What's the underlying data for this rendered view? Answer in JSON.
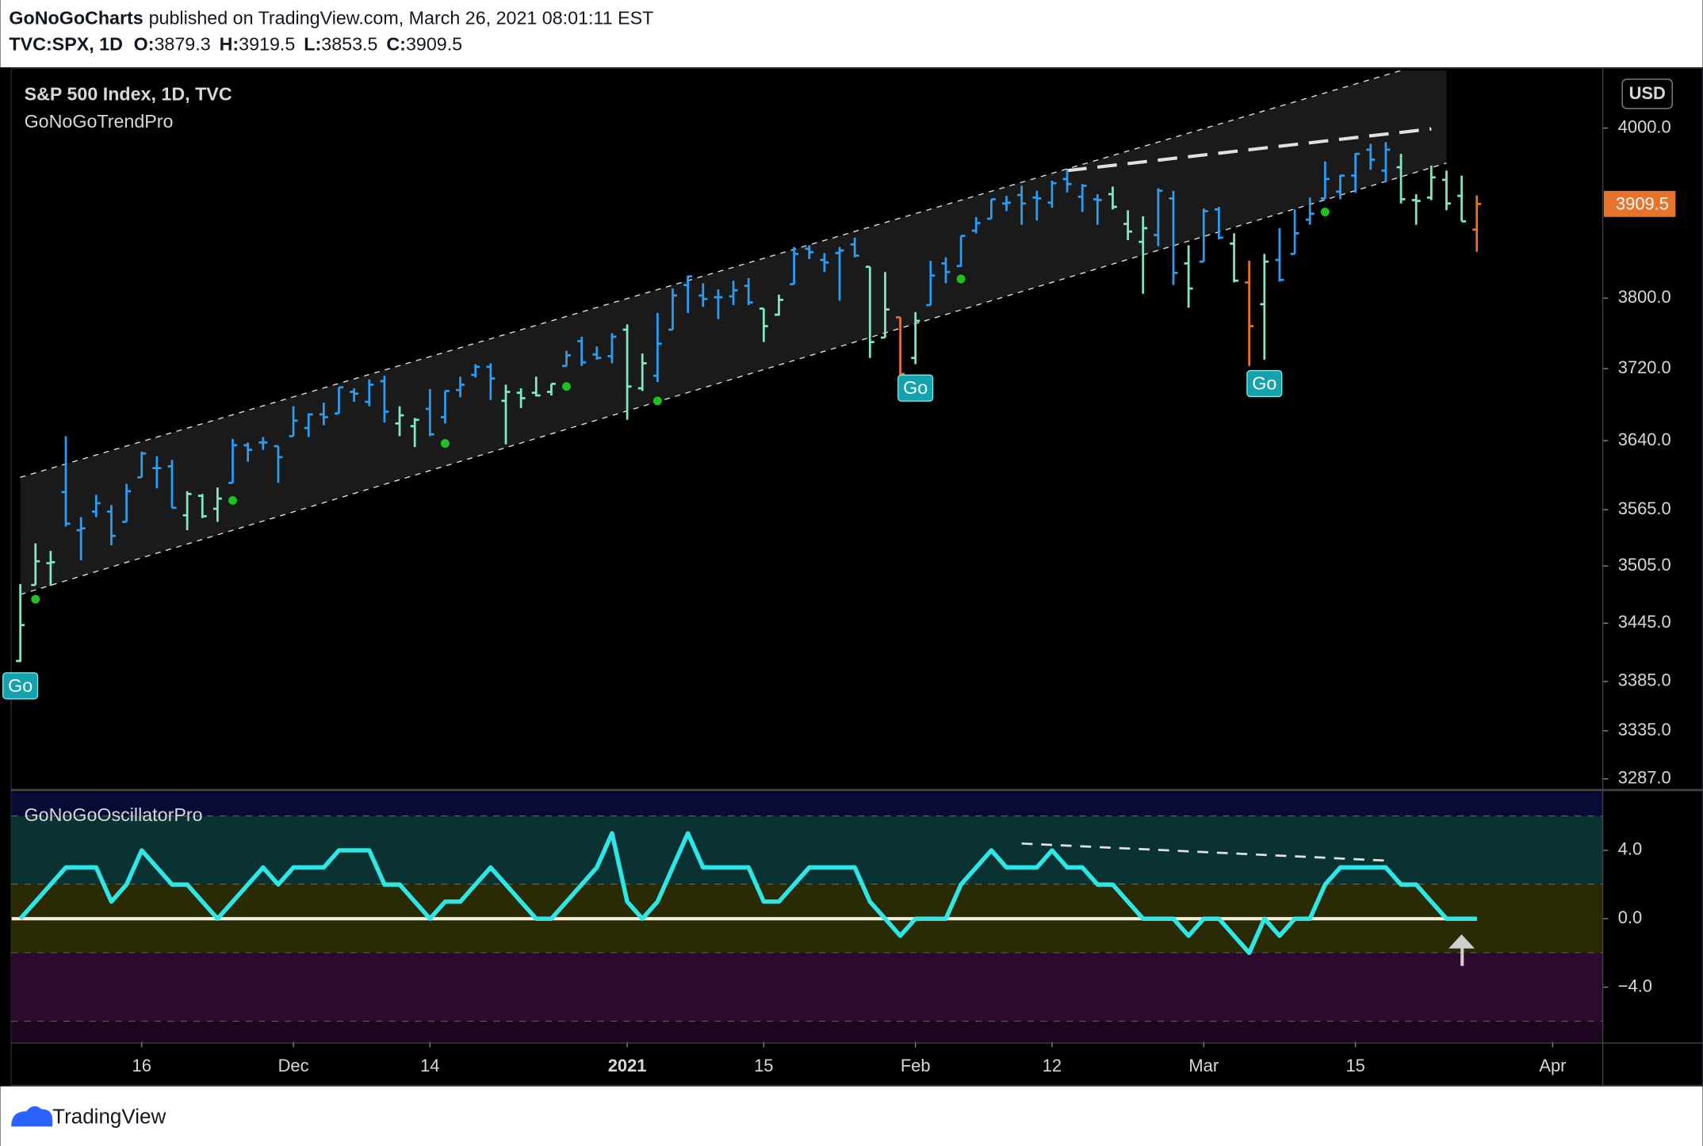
{
  "header": {
    "publisher": "GoNoGoCharts",
    "published": "published on TradingView.com, March 26, 2021 08:01:11 EST",
    "symbol": "TVC:SPX, 1D",
    "ohlc_labels": [
      "O:",
      "H:",
      "L:",
      "C:"
    ]
  },
  "currency": "USD",
  "footer": "TradingView",
  "chart_data": [
    {
      "type": "ohlc",
      "title": "S&P 500 Index, 1D, TVC",
      "subtitle": "GoNoGoTrendPro",
      "log_scale": true,
      "xlim": [
        -0.6,
        104.3
      ],
      "ylim": [
        3277,
        4070
      ],
      "yticks": [
        {
          "value": 4000,
          "label": "4000.0"
        },
        {
          "value": 3800,
          "label": "3800.0"
        },
        {
          "value": 3720,
          "label": "3720.0"
        },
        {
          "value": 3640,
          "label": "3640.0"
        },
        {
          "value": 3565,
          "label": "3565.0"
        },
        {
          "value": 3505,
          "label": "3505.0"
        },
        {
          "value": 3445,
          "label": "3445.0"
        },
        {
          "value": 3385,
          "label": "3385.0"
        },
        {
          "value": 3335,
          "label": "3335.0"
        },
        {
          "value": 3287,
          "label": "3287.0"
        }
      ],
      "open": [
        3406,
        3485,
        3508,
        3584,
        3543,
        3563,
        3563,
        3552,
        3600,
        3610,
        3612,
        3559,
        3580,
        3566,
        3594,
        3635,
        3638,
        3634,
        3645,
        3654,
        3669,
        3670,
        3694,
        3683,
        3706,
        3659,
        3656,
        3675,
        3666,
        3696,
        3713,
        3722,
        3684,
        3693,
        3693,
        3694,
        3723,
        3751,
        3736,
        3734,
        3764,
        3698,
        3712,
        3764,
        3815,
        3803,
        3801,
        3802,
        3814,
        3788,
        3781,
        3816,
        3857,
        3844,
        3852,
        3862,
        3836,
        3755,
        3778,
        3732,
        3792,
        3840,
        3837,
        3878,
        3892,
        3910,
        3920,
        3917,
        3911,
        3939,
        3918,
        3915,
        3921,
        3886,
        3865,
        3873,
        3916,
        3840,
        3842,
        3903,
        3863,
        3818,
        3793,
        3844,
        3851,
        3891,
        3916,
        3924,
        3943,
        3974,
        3949,
        3953,
        3914,
        3917,
        3938,
        3919,
        3879.3
      ],
      "high": [
        3486,
        3529,
        3521,
        3645,
        3557,
        3581,
        3570,
        3593,
        3628,
        3623,
        3619,
        3585,
        3582,
        3589,
        3642,
        3638,
        3644,
        3634,
        3678,
        3670,
        3682,
        3699,
        3698,
        3708,
        3712,
        3678,
        3665,
        3697,
        3695,
        3711,
        3725,
        3726,
        3702,
        3698,
        3711,
        3703,
        3740,
        3756,
        3745,
        3760,
        3770,
        3737,
        3783,
        3811,
        3826,
        3817,
        3810,
        3820,
        3823,
        3788,
        3804,
        3859,
        3861,
        3852,
        3859,
        3870,
        3836,
        3830,
        3778,
        3784,
        3843,
        3847,
        3872,
        3894,
        3915,
        3919,
        3931,
        3925,
        3937,
        3950,
        3933,
        3921,
        3930,
        3902,
        3895,
        3928,
        3925,
        3861,
        3904,
        3906,
        3875,
        3843,
        3851,
        3881,
        3903,
        3917,
        3960,
        3944,
        3970,
        3981,
        3983,
        3969,
        3921,
        3955,
        3949,
        3943,
        3919.5
      ],
      "low": [
        3405,
        3485,
        3484,
        3547,
        3511,
        3557,
        3527,
        3552,
        3600,
        3588,
        3567,
        3543,
        3556,
        3552,
        3594,
        3617,
        3630,
        3594,
        3645,
        3644,
        3657,
        3670,
        3683,
        3678,
        3660,
        3645,
        3633,
        3645,
        3659,
        3688,
        3710,
        3685,
        3636,
        3676,
        3689,
        3690,
        3723,
        3723,
        3730,
        3726,
        3663,
        3695,
        3705,
        3764,
        3783,
        3790,
        3776,
        3792,
        3792,
        3750,
        3780,
        3816,
        3845,
        3830,
        3797,
        3847,
        3732,
        3755,
        3694,
        3725,
        3792,
        3817,
        3836,
        3875,
        3892,
        3901,
        3885,
        3890,
        3905,
        3923,
        3900,
        3885,
        3903,
        3867,
        3805,
        3860,
        3815,
        3789,
        3842,
        3868,
        3818,
        3723,
        3730,
        3819,
        3851,
        3885,
        3916,
        3915,
        3923,
        3950,
        3935,
        3910,
        3885,
        3914,
        3902,
        3889,
        3853.5
      ],
      "close": [
        3443,
        3510,
        3509,
        3550,
        3545,
        3572,
        3537,
        3585,
        3626,
        3610,
        3567,
        3582,
        3558,
        3577,
        3635,
        3630,
        3638,
        3622,
        3662,
        3669,
        3666,
        3699,
        3692,
        3702,
        3672,
        3668,
        3663,
        3647,
        3695,
        3702,
        3722,
        3709,
        3694,
        3687,
        3690,
        3703,
        3735,
        3727,
        3732,
        3756,
        3700,
        3726,
        3748,
        3803,
        3825,
        3799,
        3801,
        3809,
        3795,
        3768,
        3798,
        3851,
        3853,
        3841,
        3855,
        3849,
        3750,
        3787,
        3714,
        3774,
        3826,
        3830,
        3872,
        3887,
        3915,
        3911,
        3910,
        3916,
        3934,
        3933,
        3931,
        3914,
        3906,
        3877,
        3881,
        3925,
        3829,
        3811,
        3901,
        3870,
        3820,
        3768,
        3842,
        3821,
        3875,
        3898,
        3939,
        3943,
        3969,
        3962,
        3974,
        3915,
        3913,
        3941,
        3910,
        3889,
        3909.5
      ],
      "colors": [
        "#80e8c8",
        "#80e8c8",
        "#80e8c8",
        "#2a9df4",
        "#2a9df4",
        "#2a9df4",
        "#2a9df4",
        "#2a9df4",
        "#2a9df4",
        "#2a9df4",
        "#2a9df4",
        "#80e8c8",
        "#80e8c8",
        "#80e8c8",
        "#2a9df4",
        "#2a9df4",
        "#2a9df4",
        "#2a9df4",
        "#2a9df4",
        "#2a9df4",
        "#2a9df4",
        "#2a9df4",
        "#2a9df4",
        "#2a9df4",
        "#2a9df4",
        "#80e8c8",
        "#80e8c8",
        "#2a9df4",
        "#2a9df4",
        "#2a9df4",
        "#2a9df4",
        "#2a9df4",
        "#80e8c8",
        "#80e8c8",
        "#80e8c8",
        "#80e8c8",
        "#2a9df4",
        "#2a9df4",
        "#2a9df4",
        "#2a9df4",
        "#80e8c8",
        "#80e8c8",
        "#2a9df4",
        "#2a9df4",
        "#2a9df4",
        "#2a9df4",
        "#2a9df4",
        "#2a9df4",
        "#2a9df4",
        "#80e8c8",
        "#80e8c8",
        "#2a9df4",
        "#2a9df4",
        "#2a9df4",
        "#2a9df4",
        "#2a9df4",
        "#80e8c8",
        "#80e8c8",
        "#e8742b",
        "#80e8c8",
        "#2a9df4",
        "#2a9df4",
        "#2a9df4",
        "#2a9df4",
        "#2a9df4",
        "#2a9df4",
        "#2a9df4",
        "#2a9df4",
        "#2a9df4",
        "#2a9df4",
        "#2a9df4",
        "#2a9df4",
        "#80e8c8",
        "#80e8c8",
        "#80e8c8",
        "#2a9df4",
        "#2a9df4",
        "#80e8c8",
        "#2a9df4",
        "#2a9df4",
        "#80e8c8",
        "#e8742b",
        "#80e8c8",
        "#2a9df4",
        "#2a9df4",
        "#2a9df4",
        "#2a9df4",
        "#2a9df4",
        "#2a9df4",
        "#2a9df4",
        "#2a9df4",
        "#80e8c8",
        "#80e8c8",
        "#80e8c8",
        "#80e8c8",
        "#80e8c8",
        "#e8742b"
      ],
      "last_price_color": "#e8742b",
      "channel_fill": "#1a1a1a",
      "trendlines": [
        {
          "from": [
            0,
            3600
          ],
          "to": [
            91,
            4070
          ],
          "width": 1,
          "dash": "5 5"
        },
        {
          "from": [
            0,
            3475
          ],
          "to": [
            94,
            3958
          ],
          "width": 1,
          "dash": "5 5"
        },
        {
          "from": [
            69,
            3949
          ],
          "to": [
            93,
            3999
          ],
          "width": 3,
          "dash": "18 10"
        }
      ],
      "dots": {
        "color": "#1fc01f",
        "points": [
          [
            1,
            3470
          ],
          [
            14,
            3575
          ],
          [
            28,
            3637
          ],
          [
            36,
            3700
          ],
          [
            42,
            3684
          ],
          [
            62,
            3822
          ],
          [
            86,
            3900
          ]
        ]
      },
      "signals": [
        {
          "index": 0,
          "label": "Go"
        },
        {
          "index": 59,
          "label": "Go"
        },
        {
          "index": 82,
          "label": "Go"
        }
      ]
    },
    {
      "type": "line",
      "title": "GoNoGoOscillatorPro",
      "color": "#2fe6e6",
      "xlim": [
        -0.6,
        104.3
      ],
      "ylim": [
        -7.2,
        7.4
      ],
      "yticks": [
        {
          "value": 4,
          "label": "4.0"
        },
        {
          "value": 0,
          "label": "0.0"
        },
        {
          "value": -4,
          "label": "−4.0"
        }
      ],
      "values": [
        0,
        1,
        2,
        3,
        3,
        3,
        1,
        2,
        4,
        3,
        2,
        2,
        1,
        0,
        1,
        2,
        3,
        2,
        3,
        3,
        3,
        4,
        4,
        4,
        2,
        2,
        1,
        0,
        1,
        1,
        2,
        3,
        2,
        1,
        0,
        0,
        1,
        2,
        3,
        5,
        1,
        0,
        1,
        3,
        5,
        3,
        3,
        3,
        3,
        1,
        1,
        2,
        3,
        3,
        3,
        3,
        1,
        0,
        -1,
        0,
        0,
        0,
        2,
        3,
        4,
        3,
        3,
        3,
        4,
        3,
        3,
        2,
        2,
        1,
        0,
        0,
        0,
        -1,
        0,
        0,
        -1,
        -2,
        0,
        -1,
        0,
        0,
        2,
        3,
        3,
        3,
        3,
        2,
        2,
        1,
        0,
        0,
        0
      ],
      "zero_line": {
        "value": 0,
        "color": "#f4f0d8"
      },
      "zones": [
        {
          "from": 7.4,
          "to": 6,
          "color": "#0a0a36"
        },
        {
          "from": 6,
          "to": 2,
          "color": "#0b3232"
        },
        {
          "from": 2,
          "to": -2,
          "color": "#2a2a04"
        },
        {
          "from": -2,
          "to": -6,
          "color": "#2c0a2e"
        },
        {
          "from": -6,
          "to": -7.2,
          "color": "#1c0620"
        }
      ],
      "trendlines": [
        {
          "from": [
            66,
            4.4
          ],
          "to": [
            90,
            3.4
          ],
          "width": 2,
          "dash": "10 8"
        }
      ],
      "xticks": [
        {
          "value": 8,
          "label": "16"
        },
        {
          "value": 18,
          "label": "Dec"
        },
        {
          "value": 27,
          "label": "14"
        },
        {
          "value": 40,
          "label": "2021",
          "bold": true
        },
        {
          "value": 49,
          "label": "15"
        },
        {
          "value": 59,
          "label": "Feb"
        },
        {
          "value": 68,
          "label": "12"
        },
        {
          "value": 78,
          "label": "Mar"
        },
        {
          "value": 88,
          "label": "15"
        },
        {
          "value": 101,
          "label": "Apr"
        }
      ]
    }
  ]
}
